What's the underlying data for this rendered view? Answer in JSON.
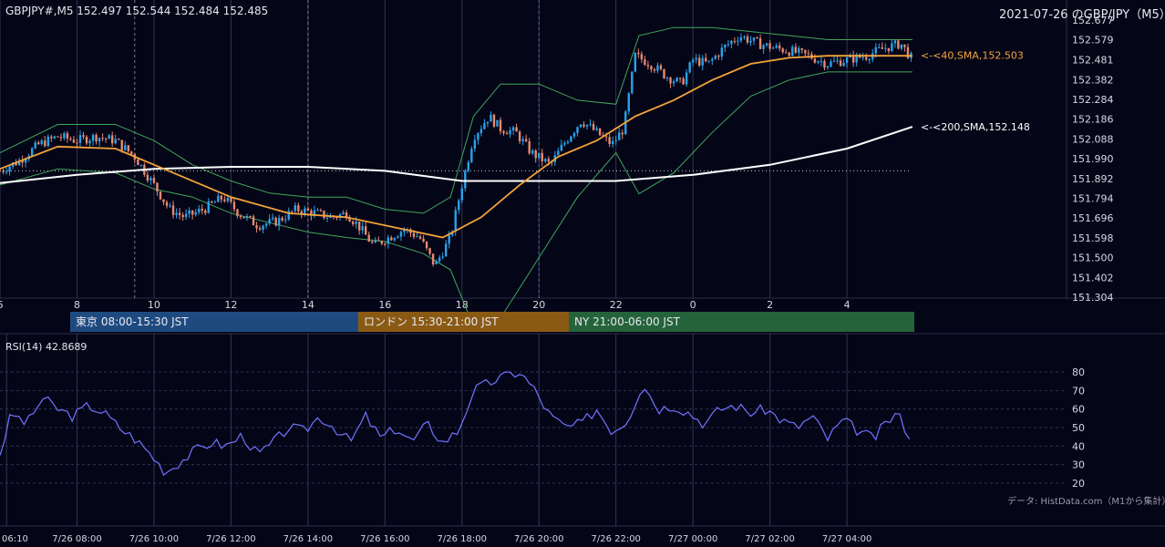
{
  "header": {
    "symbol_ohlc": "GBPJPY#,M5 152.497 152.544 152.484 152.485",
    "title": "2021-07-26 のGBP/JPY（M5）"
  },
  "sessions": [
    {
      "label": "東京 08:00-15:30 JST",
      "color": "#1f4a80"
    },
    {
      "label": "ロンドン 15:30-21:00 JST",
      "color": "#8a5a14"
    },
    {
      "label": "NY 21:00-06:00 JST",
      "color": "#25633a"
    }
  ],
  "rsi_header": "RSI(14) 42.8689",
  "credit": "データ: HistData.com（M1から集計）",
  "colors": {
    "background": "#050518",
    "candle_up": "#29a3e8",
    "candle_down": "#e7896e",
    "sma40": "#f3a43a",
    "sma200": "#ffffff",
    "bollinger": "#3fa85a",
    "rsi": "#6f75ff",
    "grid": "#303550"
  },
  "chart_data": [
    {
      "type": "candlestick",
      "title": "",
      "y_ticks": [
        152.677,
        152.579,
        152.481,
        152.382,
        152.284,
        152.186,
        152.088,
        151.99,
        151.892,
        151.794,
        151.696,
        151.598,
        151.5,
        151.402,
        151.304
      ],
      "ylim": [
        151.304,
        152.677
      ],
      "x_hour_ticks": [
        "6",
        "8",
        "10",
        "12",
        "14",
        "16",
        "18",
        "20",
        "22",
        "0",
        "2",
        "4"
      ],
      "x_hour_values": [
        6,
        8,
        10,
        12,
        14,
        16,
        18,
        20,
        22,
        24,
        26,
        28
      ],
      "xlim": [
        6,
        29.75
      ],
      "close_path": [
        [
          6.0,
          151.93
        ],
        [
          6.5,
          151.98
        ],
        [
          7.0,
          152.06
        ],
        [
          7.5,
          152.1
        ],
        [
          8.0,
          152.08
        ],
        [
          8.5,
          152.1
        ],
        [
          9.0,
          152.08
        ],
        [
          9.5,
          152.0
        ],
        [
          10.0,
          151.86
        ],
        [
          10.4,
          151.74
        ],
        [
          10.8,
          151.7
        ],
        [
          11.3,
          151.74
        ],
        [
          11.8,
          151.8
        ],
        [
          12.2,
          151.72
        ],
        [
          12.7,
          151.66
        ],
        [
          13.2,
          151.68
        ],
        [
          13.7,
          151.74
        ],
        [
          14.2,
          151.72
        ],
        [
          14.6,
          151.7
        ],
        [
          15.0,
          151.72
        ],
        [
          15.3,
          151.66
        ],
        [
          15.7,
          151.56
        ],
        [
          16.1,
          151.6
        ],
        [
          16.5,
          151.64
        ],
        [
          16.9,
          151.6
        ],
        [
          17.3,
          151.46
        ],
        [
          17.7,
          151.6
        ],
        [
          18.0,
          151.86
        ],
        [
          18.3,
          152.1
        ],
        [
          18.7,
          152.2
        ],
        [
          19.0,
          152.14
        ],
        [
          19.4,
          152.12
        ],
        [
          19.8,
          152.02
        ],
        [
          20.3,
          151.96
        ],
        [
          20.7,
          152.08
        ],
        [
          21.1,
          152.18
        ],
        [
          21.5,
          152.12
        ],
        [
          21.9,
          152.06
        ],
        [
          22.2,
          152.14
        ],
        [
          22.5,
          152.5
        ],
        [
          22.9,
          152.46
        ],
        [
          23.3,
          152.4
        ],
        [
          23.7,
          152.36
        ],
        [
          24.0,
          152.48
        ],
        [
          24.4,
          152.46
        ],
        [
          24.8,
          152.54
        ],
        [
          25.2,
          152.6
        ],
        [
          25.7,
          152.56
        ],
        [
          26.1,
          152.54
        ],
        [
          26.6,
          152.52
        ],
        [
          27.0,
          152.5
        ],
        [
          27.5,
          152.46
        ],
        [
          28.0,
          152.48
        ],
        [
          28.5,
          152.5
        ],
        [
          29.0,
          152.54
        ],
        [
          29.4,
          152.56
        ],
        [
          29.7,
          152.48
        ]
      ],
      "series": [
        {
          "name": "40,SMA,152.503",
          "points": [
            [
              6.0,
              151.94
            ],
            [
              7.5,
              152.05
            ],
            [
              9.0,
              152.04
            ],
            [
              10.5,
              151.92
            ],
            [
              12.0,
              151.8
            ],
            [
              13.5,
              151.72
            ],
            [
              15.0,
              151.7
            ],
            [
              16.5,
              151.64
            ],
            [
              17.5,
              151.6
            ],
            [
              18.5,
              151.7
            ],
            [
              19.5,
              151.86
            ],
            [
              20.5,
              152.0
            ],
            [
              21.5,
              152.08
            ],
            [
              22.5,
              152.2
            ],
            [
              23.5,
              152.28
            ],
            [
              24.5,
              152.38
            ],
            [
              25.5,
              152.46
            ],
            [
              26.5,
              152.49
            ],
            [
              27.5,
              152.5
            ],
            [
              28.5,
              152.5
            ],
            [
              29.7,
              152.5
            ]
          ]
        },
        {
          "name": "200,SMA,152.148",
          "points": [
            [
              6.0,
              151.87
            ],
            [
              8.0,
              151.91
            ],
            [
              10.0,
              151.94
            ],
            [
              12.0,
              151.95
            ],
            [
              14.0,
              151.95
            ],
            [
              16.0,
              151.93
            ],
            [
              18.0,
              151.88
            ],
            [
              20.0,
              151.88
            ],
            [
              22.0,
              151.88
            ],
            [
              24.0,
              151.91
            ],
            [
              26.0,
              151.96
            ],
            [
              28.0,
              152.04
            ],
            [
              29.7,
              152.148
            ]
          ]
        }
      ],
      "bollinger_upper": [
        [
          6.0,
          152.02
        ],
        [
          7.5,
          152.16
        ],
        [
          9.0,
          152.16
        ],
        [
          10.0,
          152.08
        ],
        [
          11.0,
          151.96
        ],
        [
          12.0,
          151.88
        ],
        [
          13.0,
          151.82
        ],
        [
          14.0,
          151.8
        ],
        [
          15.0,
          151.8
        ],
        [
          16.0,
          151.74
        ],
        [
          17.0,
          151.72
        ],
        [
          17.7,
          151.8
        ],
        [
          18.3,
          152.2
        ],
        [
          19.0,
          152.36
        ],
        [
          20.0,
          152.36
        ],
        [
          21.0,
          152.28
        ],
        [
          22.0,
          152.26
        ],
        [
          22.6,
          152.6
        ],
        [
          23.5,
          152.64
        ],
        [
          24.5,
          152.64
        ],
        [
          25.5,
          152.62
        ],
        [
          26.5,
          152.6
        ],
        [
          27.5,
          152.58
        ],
        [
          28.5,
          152.58
        ],
        [
          29.7,
          152.58
        ]
      ]
    },
    {
      "type": "line",
      "title": "",
      "series_label": "RSI(14) 42.8689",
      "y_ticks": [
        80,
        70,
        60,
        50,
        40,
        30,
        20
      ],
      "ylim": [
        20,
        80
      ],
      "x_tick_labels": [
        "06:10",
        "7/26 08:00",
        "7/26 10:00",
        "7/26 12:00",
        "7/26 14:00",
        "7/26 16:00",
        "7/26 18:00",
        "7/26 20:00",
        "7/26 22:00",
        "7/27 00:00",
        "7/27 02:00",
        "7/27 04:00"
      ],
      "x_tick_values": [
        6.17,
        8,
        10,
        12,
        14,
        16,
        18,
        20,
        22,
        24,
        26,
        28
      ],
      "xlim": [
        6,
        29.75
      ],
      "points": [
        [
          6.0,
          36
        ],
        [
          6.3,
          58
        ],
        [
          6.7,
          52
        ],
        [
          7.1,
          66
        ],
        [
          7.5,
          60
        ],
        [
          7.9,
          56
        ],
        [
          8.3,
          62
        ],
        [
          8.7,
          58
        ],
        [
          9.1,
          50
        ],
        [
          9.5,
          44
        ],
        [
          9.9,
          36
        ],
        [
          10.3,
          26
        ],
        [
          10.7,
          32
        ],
        [
          11.1,
          38
        ],
        [
          11.5,
          42
        ],
        [
          11.9,
          40
        ],
        [
          12.3,
          46
        ],
        [
          12.7,
          35
        ],
        [
          13.1,
          42
        ],
        [
          13.5,
          50
        ],
        [
          13.9,
          48
        ],
        [
          14.3,
          56
        ],
        [
          14.7,
          50
        ],
        [
          15.1,
          42
        ],
        [
          15.5,
          56
        ],
        [
          15.9,
          44
        ],
        [
          16.3,
          50
        ],
        [
          16.7,
          42
        ],
        [
          17.1,
          52
        ],
        [
          17.5,
          42
        ],
        [
          17.9,
          48
        ],
        [
          18.3,
          70
        ],
        [
          18.7,
          74
        ],
        [
          19.1,
          78
        ],
        [
          19.5,
          80
        ],
        [
          19.9,
          70
        ],
        [
          20.3,
          56
        ],
        [
          20.7,
          50
        ],
        [
          21.1,
          52
        ],
        [
          21.5,
          60
        ],
        [
          21.9,
          48
        ],
        [
          22.3,
          54
        ],
        [
          22.7,
          74
        ],
        [
          23.1,
          60
        ],
        [
          23.5,
          62
        ],
        [
          23.9,
          58
        ],
        [
          24.3,
          52
        ],
        [
          24.7,
          60
        ],
        [
          25.1,
          62
        ],
        [
          25.5,
          58
        ],
        [
          25.9,
          60
        ],
        [
          26.3,
          54
        ],
        [
          26.7,
          50
        ],
        [
          27.1,
          56
        ],
        [
          27.5,
          44
        ],
        [
          27.9,
          54
        ],
        [
          28.3,
          48
        ],
        [
          28.7,
          44
        ],
        [
          29.0,
          52
        ],
        [
          29.3,
          58
        ],
        [
          29.7,
          43
        ]
      ]
    }
  ]
}
